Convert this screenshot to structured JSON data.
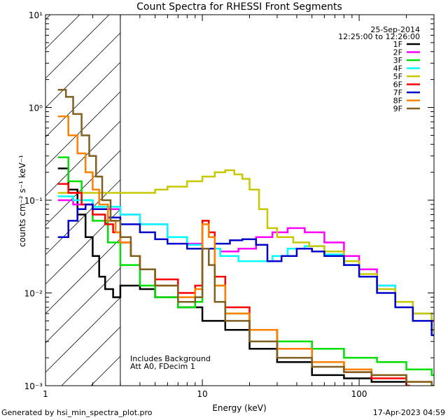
{
  "chart_data": {
    "type": "line",
    "title": "Count Spectra for RHESSI Front Segments",
    "xlabel": "Energy (keV)",
    "ylabel": "counts cm⁻² s⁻¹ keV⁻¹",
    "xscale": "log",
    "yscale": "log",
    "xlim": [
      1,
      300
    ],
    "ylim": [
      0.001,
      10
    ],
    "x_tick_labels": [
      {
        "value": 1,
        "label": "1"
      },
      {
        "value": 10,
        "label": "10"
      },
      {
        "value": 100,
        "label": "100"
      }
    ],
    "y_tick_labels": [
      {
        "exp": -3,
        "label": "10⁻³"
      },
      {
        "exp": -2,
        "label": "10⁻²"
      },
      {
        "exp": -1,
        "label": "10⁻¹"
      },
      {
        "exp": 0,
        "label": "10⁰"
      },
      {
        "exp": 1,
        "label": "10¹"
      }
    ],
    "hatched_region": [
      1,
      3
    ],
    "date": "25-Sep-2014",
    "time_range": "12:25:00 to 12:26:00",
    "annotations": [
      "Includes Background",
      "Att A0, FDecim 1"
    ],
    "series": [
      {
        "name": "1F",
        "color": "#000000",
        "points": [
          [
            1.2,
            0.22
          ],
          [
            1.4,
            0.13
          ],
          [
            1.6,
            0.07
          ],
          [
            1.8,
            0.04
          ],
          [
            2.0,
            0.025
          ],
          [
            2.2,
            0.015
          ],
          [
            2.4,
            0.011
          ],
          [
            2.7,
            0.009
          ],
          [
            3.0,
            0.012
          ],
          [
            4,
            0.011
          ],
          [
            5,
            0.009
          ],
          [
            7,
            0.007
          ],
          [
            10,
            0.005
          ],
          [
            14,
            0.004
          ],
          [
            20,
            0.0025
          ],
          [
            30,
            0.0018
          ],
          [
            50,
            0.0013
          ],
          [
            80,
            0.0012
          ],
          [
            120,
            0.0011
          ],
          [
            200,
            0.001
          ]
        ]
      },
      {
        "name": "2F",
        "color": "#ff00ff",
        "points": [
          [
            1.2,
            0.1
          ],
          [
            1.5,
            0.09
          ],
          [
            2,
            0.08
          ],
          [
            3,
            0.07
          ],
          [
            4,
            0.055
          ],
          [
            6,
            0.04
          ],
          [
            8,
            0.034
          ],
          [
            10,
            0.03
          ],
          [
            13,
            0.028
          ],
          [
            17,
            0.03
          ],
          [
            22,
            0.04
          ],
          [
            28,
            0.045
          ],
          [
            35,
            0.05
          ],
          [
            45,
            0.045
          ],
          [
            60,
            0.035
          ],
          [
            80,
            0.025
          ],
          [
            100,
            0.018
          ],
          [
            130,
            0.012
          ],
          [
            170,
            0.008
          ],
          [
            220,
            0.006
          ],
          [
            290,
            0.005
          ]
        ]
      },
      {
        "name": "3F",
        "color": "#00e000",
        "points": [
          [
            1.2,
            0.29
          ],
          [
            1.4,
            0.16
          ],
          [
            1.7,
            0.1
          ],
          [
            2,
            0.06
          ],
          [
            2.5,
            0.035
          ],
          [
            3,
            0.02
          ],
          [
            4,
            0.012
          ],
          [
            5,
            0.009
          ],
          [
            7,
            0.007
          ],
          [
            9,
            0.008
          ],
          [
            10,
            0.06
          ],
          [
            11,
            0.04
          ],
          [
            12,
            0.012
          ],
          [
            14,
            0.006
          ],
          [
            20,
            0.004
          ],
          [
            30,
            0.003
          ],
          [
            50,
            0.0025
          ],
          [
            80,
            0.002
          ],
          [
            130,
            0.0018
          ],
          [
            200,
            0.0015
          ],
          [
            290,
            0.0013
          ]
        ]
      },
      {
        "name": "4F",
        "color": "#00ffff",
        "points": [
          [
            1.2,
            0.11
          ],
          [
            1.5,
            0.1
          ],
          [
            2,
            0.085
          ],
          [
            3,
            0.07
          ],
          [
            4,
            0.055
          ],
          [
            6,
            0.04
          ],
          [
            8,
            0.033
          ],
          [
            10,
            0.03
          ],
          [
            13,
            0.025
          ],
          [
            17,
            0.022
          ],
          [
            22,
            0.022
          ],
          [
            28,
            0.025
          ],
          [
            35,
            0.03
          ],
          [
            45,
            0.032
          ],
          [
            60,
            0.026
          ],
          [
            80,
            0.02
          ],
          [
            100,
            0.015
          ],
          [
            130,
            0.012
          ],
          [
            170,
            0.008
          ],
          [
            220,
            0.006
          ],
          [
            290,
            0.004
          ]
        ]
      },
      {
        "name": "5F",
        "color": "#c8c800",
        "points": [
          [
            1.2,
            0.12
          ],
          [
            1.5,
            0.12
          ],
          [
            2,
            0.12
          ],
          [
            3,
            0.12
          ],
          [
            4,
            0.12
          ],
          [
            5,
            0.13
          ],
          [
            6,
            0.14
          ],
          [
            8,
            0.16
          ],
          [
            10,
            0.18
          ],
          [
            12,
            0.2
          ],
          [
            14,
            0.21
          ],
          [
            16,
            0.19
          ],
          [
            18,
            0.17
          ],
          [
            20,
            0.13
          ],
          [
            23,
            0.08
          ],
          [
            26,
            0.05
          ],
          [
            30,
            0.04
          ],
          [
            38,
            0.035
          ],
          [
            48,
            0.032
          ],
          [
            60,
            0.028
          ],
          [
            80,
            0.022
          ],
          [
            100,
            0.016
          ],
          [
            130,
            0.011
          ],
          [
            170,
            0.008
          ],
          [
            220,
            0.006
          ],
          [
            290,
            0.004
          ]
        ]
      },
      {
        "name": "6F",
        "color": "#ff0000",
        "points": [
          [
            1.2,
            0.15
          ],
          [
            1.4,
            0.12
          ],
          [
            1.7,
            0.09
          ],
          [
            2,
            0.07
          ],
          [
            2.4,
            0.055
          ],
          [
            2.7,
            0.045
          ],
          [
            3,
            0.035
          ],
          [
            3.5,
            0.025
          ],
          [
            4,
            0.018
          ],
          [
            5,
            0.014
          ],
          [
            7,
            0.01
          ],
          [
            9,
            0.012
          ],
          [
            10,
            0.06
          ],
          [
            11,
            0.045
          ],
          [
            12,
            0.015
          ],
          [
            14,
            0.007
          ],
          [
            20,
            0.004
          ],
          [
            30,
            0.0025
          ],
          [
            50,
            0.0018
          ],
          [
            80,
            0.0014
          ],
          [
            120,
            0.0012
          ],
          [
            200,
            0.001
          ]
        ]
      },
      {
        "name": "7F",
        "color": "#0000cc",
        "points": [
          [
            1.2,
            0.04
          ],
          [
            1.4,
            0.06
          ],
          [
            1.6,
            0.08
          ],
          [
            1.8,
            0.09
          ],
          [
            2,
            0.08
          ],
          [
            2.5,
            0.065
          ],
          [
            3,
            0.055
          ],
          [
            4,
            0.045
          ],
          [
            5,
            0.038
          ],
          [
            6,
            0.034
          ],
          [
            8,
            0.03
          ],
          [
            10,
            0.03
          ],
          [
            12,
            0.034
          ],
          [
            15,
            0.037
          ],
          [
            18,
            0.038
          ],
          [
            22,
            0.033
          ],
          [
            26,
            0.022
          ],
          [
            32,
            0.025
          ],
          [
            40,
            0.03
          ],
          [
            50,
            0.028
          ],
          [
            60,
            0.025
          ],
          [
            80,
            0.02
          ],
          [
            100,
            0.015
          ],
          [
            130,
            0.01
          ],
          [
            170,
            0.007
          ],
          [
            220,
            0.005
          ],
          [
            290,
            0.0035
          ]
        ]
      },
      {
        "name": "8F",
        "color": "#ff8000",
        "points": [
          [
            1.2,
            0.8
          ],
          [
            1.4,
            0.5
          ],
          [
            1.6,
            0.32
          ],
          [
            1.8,
            0.2
          ],
          [
            2,
            0.13
          ],
          [
            2.2,
            0.09
          ],
          [
            2.5,
            0.06
          ],
          [
            2.8,
            0.045
          ],
          [
            3,
            0.035
          ],
          [
            3.5,
            0.025
          ],
          [
            4,
            0.018
          ],
          [
            5,
            0.012
          ],
          [
            7,
            0.009
          ],
          [
            9,
            0.011
          ],
          [
            10,
            0.055
          ],
          [
            11,
            0.04
          ],
          [
            12,
            0.012
          ],
          [
            14,
            0.006
          ],
          [
            20,
            0.004
          ],
          [
            30,
            0.0025
          ],
          [
            50,
            0.0018
          ],
          [
            80,
            0.0015
          ],
          [
            120,
            0.0013
          ],
          [
            200,
            0.0011
          ],
          [
            290,
            0.001
          ]
        ]
      },
      {
        "name": "9F",
        "color": "#806020",
        "points": [
          [
            1.2,
            1.55
          ],
          [
            1.35,
            1.3
          ],
          [
            1.5,
            0.85
          ],
          [
            1.7,
            0.5
          ],
          [
            1.9,
            0.3
          ],
          [
            2.1,
            0.18
          ],
          [
            2.3,
            0.1
          ],
          [
            2.6,
            0.06
          ],
          [
            3,
            0.04
          ],
          [
            3.5,
            0.025
          ],
          [
            4,
            0.018
          ],
          [
            5,
            0.012
          ],
          [
            7,
            0.008
          ],
          [
            9,
            0.009
          ],
          [
            10,
            0.03
          ],
          [
            11,
            0.02
          ],
          [
            12,
            0.008
          ],
          [
            14,
            0.005
          ],
          [
            20,
            0.003
          ],
          [
            30,
            0.002
          ],
          [
            50,
            0.0016
          ],
          [
            80,
            0.0014
          ],
          [
            120,
            0.0013
          ],
          [
            200,
            0.0011
          ],
          [
            290,
            0.001
          ]
        ]
      }
    ]
  },
  "footer": {
    "generated_by": "Generated by hsi_min_spectra_plot.pro",
    "timestamp": "17-Apr-2023 04:59"
  }
}
